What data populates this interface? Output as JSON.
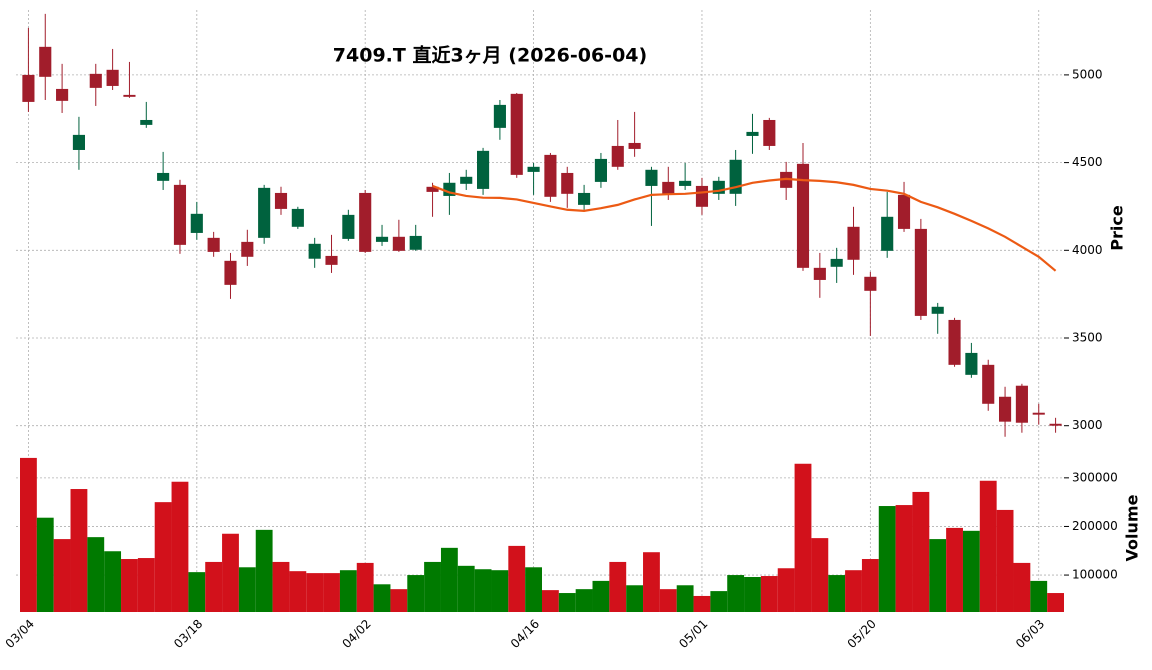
{
  "chart_data": [
    {
      "type": "candlestick",
      "title": "7409.T  直近3ヶ月  (2026-06-04)",
      "ylabel": "Price",
      "categories": [
        "03/04",
        null,
        null,
        null,
        null,
        null,
        null,
        null,
        null,
        null,
        "03/18",
        null,
        null,
        null,
        null,
        null,
        null,
        null,
        null,
        null,
        "04/02",
        null,
        null,
        null,
        null,
        null,
        null,
        null,
        null,
        null,
        "04/16",
        null,
        null,
        null,
        null,
        null,
        null,
        null,
        null,
        null,
        "05/01",
        null,
        null,
        null,
        null,
        null,
        null,
        null,
        null,
        null,
        "05/20",
        null,
        null,
        null,
        null,
        null,
        null,
        null,
        null,
        null,
        "06/03",
        null
      ],
      "open": [
        5000,
        5160,
        4920,
        4572,
        5006,
        5029,
        4886,
        4715,
        4396,
        4373,
        4099,
        4071,
        3940,
        4048,
        4071,
        4327,
        4134,
        3952,
        3968,
        4065,
        4327,
        4048,
        4077,
        4003,
        4362,
        4310,
        4379,
        4350,
        4698,
        4892,
        4447,
        4544,
        4441,
        4259,
        4390,
        4595,
        4612,
        4367,
        4390,
        4367,
        4367,
        4322,
        4322,
        4652,
        4743,
        4447,
        4493,
        3900,
        3906,
        4134,
        3849,
        3997,
        4316,
        4122,
        3638,
        3603,
        3290,
        3347,
        3165,
        3228,
        3074,
        3011
      ],
      "high": [
        5268,
        5348,
        5063,
        4761,
        5063,
        5148,
        5074,
        4846,
        4561,
        4402,
        4276,
        4105,
        3985,
        4117,
        4373,
        4362,
        4248,
        4071,
        4088,
        4231,
        4344,
        4145,
        4174,
        4145,
        4385,
        4441,
        4459,
        4584,
        4857,
        4897,
        4498,
        4555,
        4476,
        4373,
        4555,
        4743,
        4789,
        4476,
        4476,
        4498,
        4413,
        4419,
        4572,
        4778,
        4755,
        4504,
        4612,
        3985,
        4014,
        4248,
        3877,
        4333,
        4390,
        4179,
        3700,
        3615,
        3472,
        3376,
        3222,
        3239,
        3125,
        3045
      ],
      "low": [
        4789,
        4857,
        4783,
        4459,
        4823,
        4914,
        4869,
        4698,
        4344,
        3980,
        4060,
        3963,
        3723,
        3911,
        4037,
        4202,
        4122,
        3900,
        3871,
        4054,
        3985,
        4025,
        3991,
        3997,
        4191,
        4202,
        4344,
        4316,
        4630,
        4413,
        4316,
        4276,
        4242,
        4231,
        4356,
        4459,
        4533,
        4139,
        4287,
        4344,
        4202,
        4287,
        4253,
        4550,
        4572,
        4287,
        3883,
        3729,
        3814,
        3860,
        3512,
        3957,
        4105,
        3603,
        3524,
        3336,
        3273,
        3085,
        2937,
        2960,
        3006,
        2960
      ],
      "close": [
        4846,
        4989,
        4852,
        4658,
        4926,
        4937,
        4875,
        4743,
        4441,
        4031,
        4208,
        3991,
        3803,
        3963,
        4356,
        4236,
        4236,
        4037,
        3917,
        4202,
        3991,
        4077,
        3997,
        4082,
        4333,
        4385,
        4419,
        4567,
        4829,
        4430,
        4476,
        4305,
        4322,
        4327,
        4521,
        4476,
        4578,
        4459,
        4322,
        4396,
        4248,
        4396,
        4516,
        4675,
        4595,
        4356,
        3900,
        3831,
        3951,
        3946,
        3769,
        4191,
        4122,
        3626,
        3678,
        3347,
        3415,
        3125,
        3023,
        3017,
        3063,
        3000
      ],
      "up_color": "#00623e",
      "down_color": "#a11d2b",
      "series": [
        {
          "color": "#ec5a14",
          "values": [
            null,
            null,
            null,
            null,
            null,
            null,
            null,
            null,
            null,
            null,
            null,
            null,
            null,
            null,
            null,
            null,
            null,
            null,
            null,
            null,
            null,
            null,
            null,
            null,
            4367,
            4330,
            4310,
            4300,
            4299,
            4290,
            4270,
            4250,
            4231,
            4225,
            4240,
            4259,
            4290,
            4316,
            4320,
            4322,
            4330,
            4339,
            4360,
            4385,
            4398,
            4407,
            4400,
            4396,
            4388,
            4373,
            4350,
            4340,
            4322,
            4276,
            4245,
            4208,
            4168,
            4125,
            4077,
            4020,
            3963,
            3883
          ]
        }
      ],
      "ylim": [
        2890,
        5370
      ],
      "yticks": [
        3000,
        3500,
        4000,
        4500,
        5000
      ],
      "grid": true
    },
    {
      "type": "bar",
      "ylabel": "Volume",
      "values": [
        341000,
        218000,
        174000,
        277000,
        178000,
        149000,
        133000,
        135000,
        250000,
        292000,
        106000,
        127000,
        185000,
        116000,
        193000,
        127000,
        108000,
        104000,
        104000,
        110000,
        125000,
        81000,
        71000,
        100000,
        127000,
        156000,
        119000,
        112000,
        110000,
        160000,
        116000,
        69000,
        63000,
        71000,
        88000,
        127000,
        79000,
        147000,
        71000,
        79000,
        57000,
        67000,
        100000,
        96000,
        98000,
        114000,
        329000,
        176000,
        100000,
        110000,
        133000,
        242000,
        244000,
        271000,
        174000,
        197000,
        191000,
        294000,
        234000,
        125000,
        88000,
        63000
      ],
      "colors": [
        "r",
        "g",
        "r",
        "r",
        "g",
        "g",
        "r",
        "r",
        "r",
        "r",
        "g",
        "r",
        "r",
        "g",
        "g",
        "r",
        "r",
        "r",
        "r",
        "g",
        "r",
        "g",
        "r",
        "g",
        "g",
        "g",
        "g",
        "g",
        "g",
        "r",
        "g",
        "r",
        "g",
        "g",
        "g",
        "r",
        "g",
        "r",
        "r",
        "g",
        "r",
        "g",
        "g",
        "g",
        "r",
        "r",
        "r",
        "r",
        "g",
        "r",
        "r",
        "g",
        "r",
        "r",
        "g",
        "r",
        "g",
        "r",
        "r",
        "r",
        "g",
        "r"
      ],
      "up_color": "#007a00",
      "down_color": "#d2111b",
      "ylim": [
        24000,
        347000
      ],
      "yticks": [
        100000,
        200000,
        300000
      ],
      "grid": true
    }
  ]
}
